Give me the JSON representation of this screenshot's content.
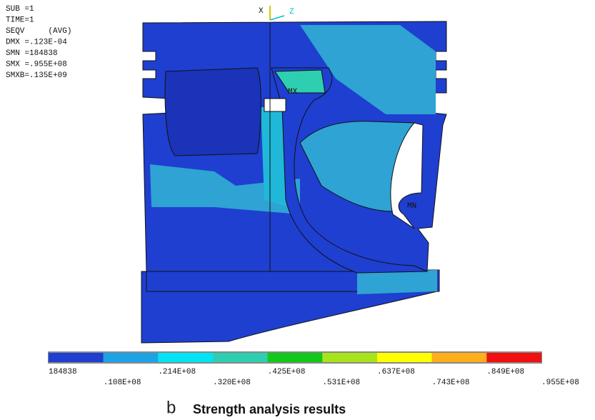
{
  "header": {
    "lines": [
      "SUB =1",
      "TIME=1",
      "SEQV     (AVG)",
      "DMX =.123E-04",
      "SMN =184838",
      "SMX =.955E+08",
      "SMXB=.135E+09"
    ]
  },
  "triad": {
    "x": "X",
    "z": "Z"
  },
  "markers": {
    "max": "MX",
    "min": "MN"
  },
  "legend": {
    "colors": [
      "#1f3fd0",
      "#1ea2e6",
      "#00e4f4",
      "#2ecfb0",
      "#12c818",
      "#a8e41a",
      "#ffff00",
      "#ffae1a",
      "#f01010"
    ],
    "labels": [
      "184838",
      ".108E+08",
      ".214E+08",
      ".320E+08",
      ".425E+08",
      ".531E+08",
      ".637E+08",
      ".743E+08",
      ".849E+08",
      ".955E+08"
    ]
  },
  "caption": {
    "label": "b",
    "text": "Strength analysis results"
  }
}
